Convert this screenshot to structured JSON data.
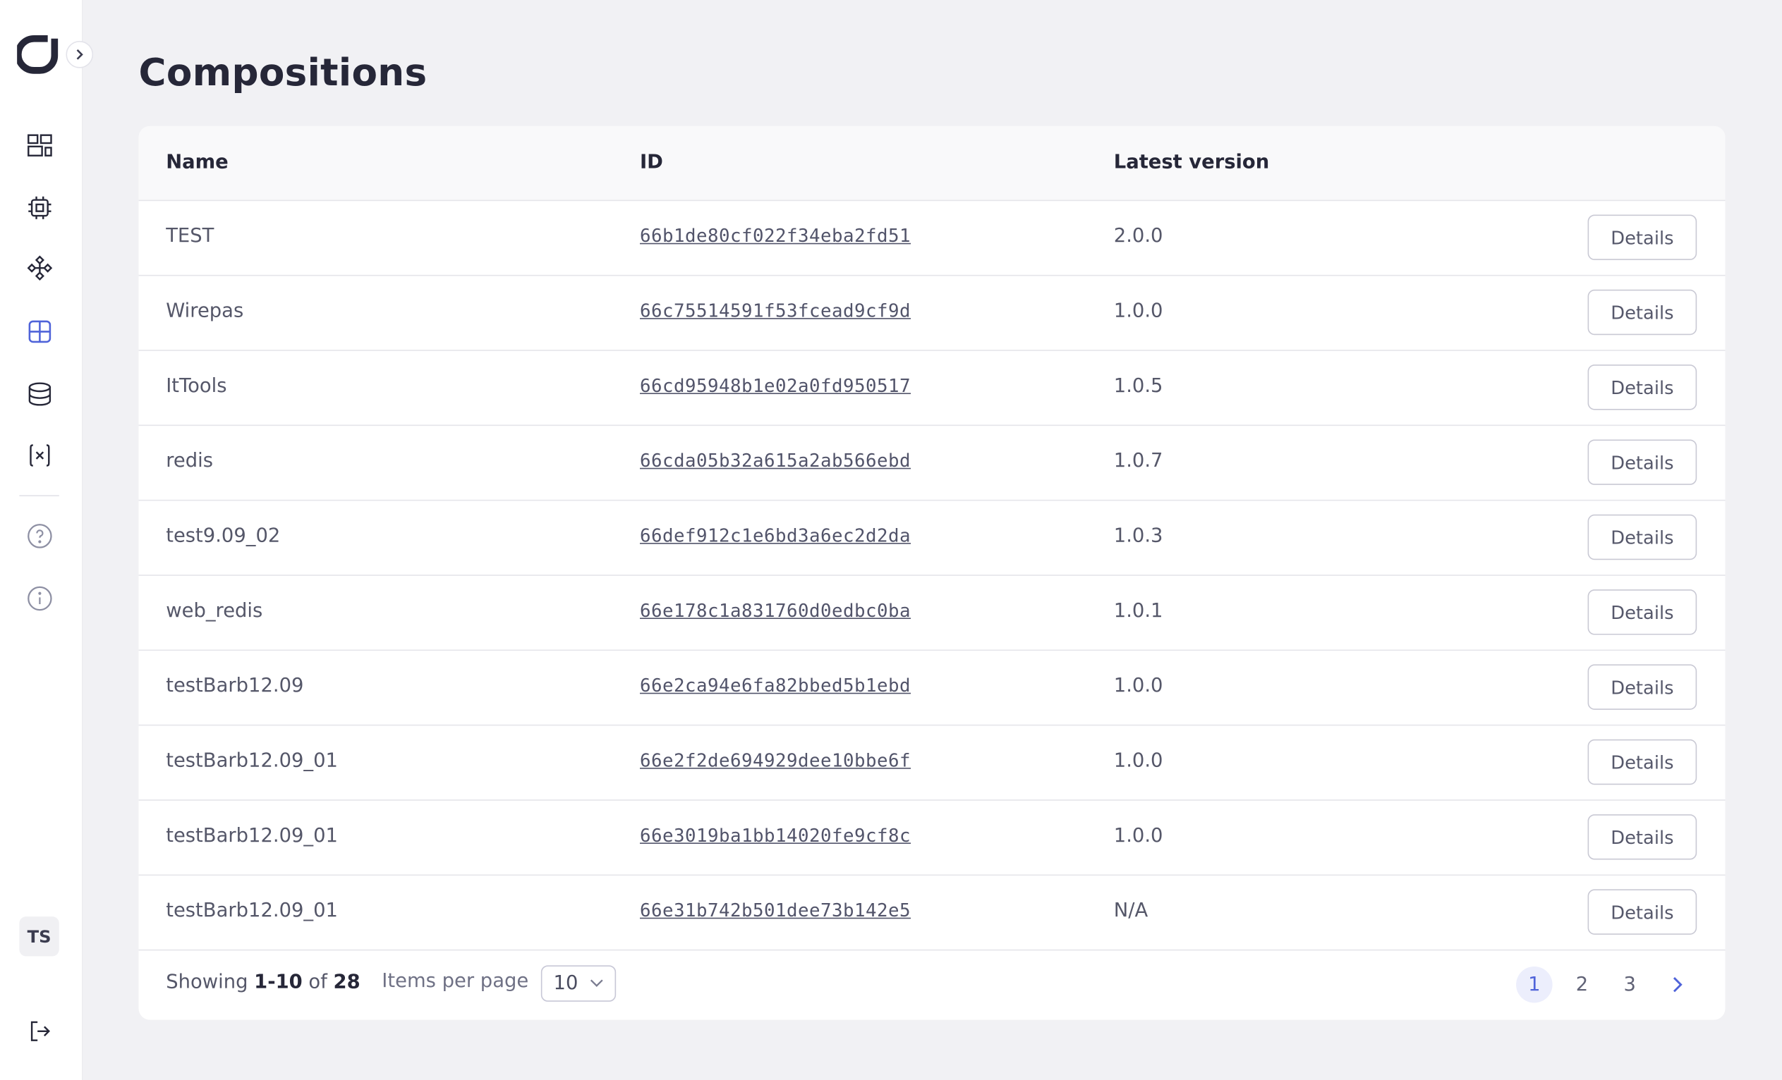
{
  "sidebar": {
    "logo": "app-logo",
    "items": [
      {
        "name": "dashboard",
        "icon": "dashboard-grid-icon",
        "active": false
      },
      {
        "name": "devices",
        "icon": "chip-icon",
        "active": false
      },
      {
        "name": "network",
        "icon": "nodes-icon",
        "active": false
      },
      {
        "name": "compositions",
        "icon": "grid-icon",
        "active": true
      },
      {
        "name": "storage",
        "icon": "database-icon",
        "active": false
      },
      {
        "name": "variables",
        "icon": "variable-icon",
        "active": false
      }
    ],
    "secondary": [
      {
        "name": "help",
        "icon": "help-circle-icon"
      },
      {
        "name": "info",
        "icon": "info-circle-icon"
      }
    ],
    "avatar_initials": "TS",
    "logout_icon": "logout-icon",
    "accent_color": "#4f63d9"
  },
  "page": {
    "title": "Compositions"
  },
  "table": {
    "columns": [
      "Name",
      "ID",
      "Latest version"
    ],
    "details_label": "Details",
    "rows": [
      {
        "name": "TEST",
        "id": "66b1de80cf022f34eba2fd51",
        "version": "2.0.0"
      },
      {
        "name": "Wirepas",
        "id": "66c75514591f53fcead9cf9d",
        "version": "1.0.0"
      },
      {
        "name": "ItTools",
        "id": "66cd95948b1e02a0fd950517",
        "version": "1.0.5"
      },
      {
        "name": "redis",
        "id": "66cda05b32a615a2ab566ebd",
        "version": "1.0.7"
      },
      {
        "name": "test9.09_02",
        "id": "66def912c1e6bd3a6ec2d2da",
        "version": "1.0.3"
      },
      {
        "name": "web_redis",
        "id": "66e178c1a831760d0edbc0ba",
        "version": "1.0.1"
      },
      {
        "name": "testBarb12.09",
        "id": "66e2ca94e6fa82bbed5b1ebd",
        "version": "1.0.0"
      },
      {
        "name": "testBarb12.09_01",
        "id": "66e2f2de694929dee10bbe6f",
        "version": "1.0.0"
      },
      {
        "name": "testBarb12.09_01",
        "id": "66e3019ba1bb14020fe9cf8c",
        "version": "1.0.0"
      },
      {
        "name": "testBarb12.09_01",
        "id": "66e31b742b501dee73b142e5",
        "version": "N/A"
      }
    ]
  },
  "footer": {
    "showing_prefix": "Showing",
    "range": "1-10",
    "of_label": "of",
    "total": "28",
    "items_per_page_label": "Items per page",
    "items_per_page_value": "10",
    "pages": [
      "1",
      "2",
      "3"
    ],
    "current_page": "1"
  }
}
